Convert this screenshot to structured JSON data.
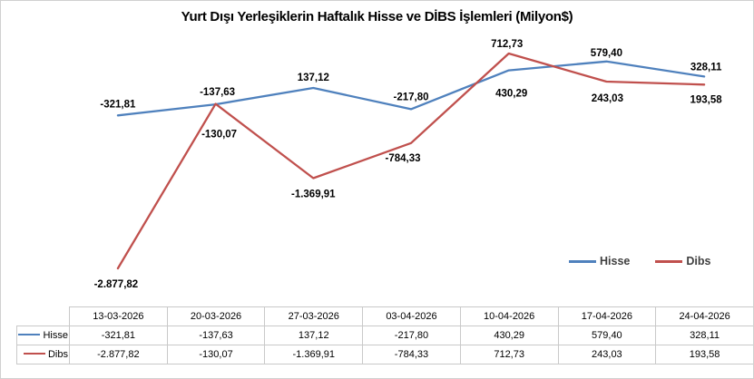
{
  "chart_data": {
    "type": "line",
    "title": "Yurt Dışı Yerleşiklerin Haftalık Hisse ve DİBS İşlemleri (Milyon$)",
    "categories": [
      "13-03-2026",
      "20-03-2026",
      "27-03-2026",
      "03-04-2026",
      "10-04-2026",
      "17-04-2026",
      "24-04-2026"
    ],
    "series": [
      {
        "name": "Hisse",
        "color": "#4F81BD",
        "values": [
          -321.81,
          -137.63,
          137.12,
          -217.8,
          430.29,
          579.4,
          328.11
        ],
        "labels": [
          "-321,81",
          "-137,63",
          "137,12",
          "-217,80",
          "430,29",
          "579,40",
          "328,11"
        ]
      },
      {
        "name": "Dibs",
        "color": "#C0504D",
        "values": [
          -2877.82,
          -130.07,
          -1369.91,
          -784.33,
          712.73,
          243.03,
          193.58
        ],
        "labels": [
          "-2.877,82",
          "-130,07",
          "-1.369,91",
          "-784,33",
          "712,73",
          "243,03",
          "193,58"
        ]
      }
    ],
    "xlabel": "",
    "ylabel": "",
    "ylim": [
      -3000,
      800
    ],
    "grid": false,
    "axes_visible": false,
    "legend_position": "right-middle",
    "data_table": true,
    "label_color": "#000000",
    "legend_text_color": "#404040",
    "table_border_color": "#c9c9c9"
  }
}
